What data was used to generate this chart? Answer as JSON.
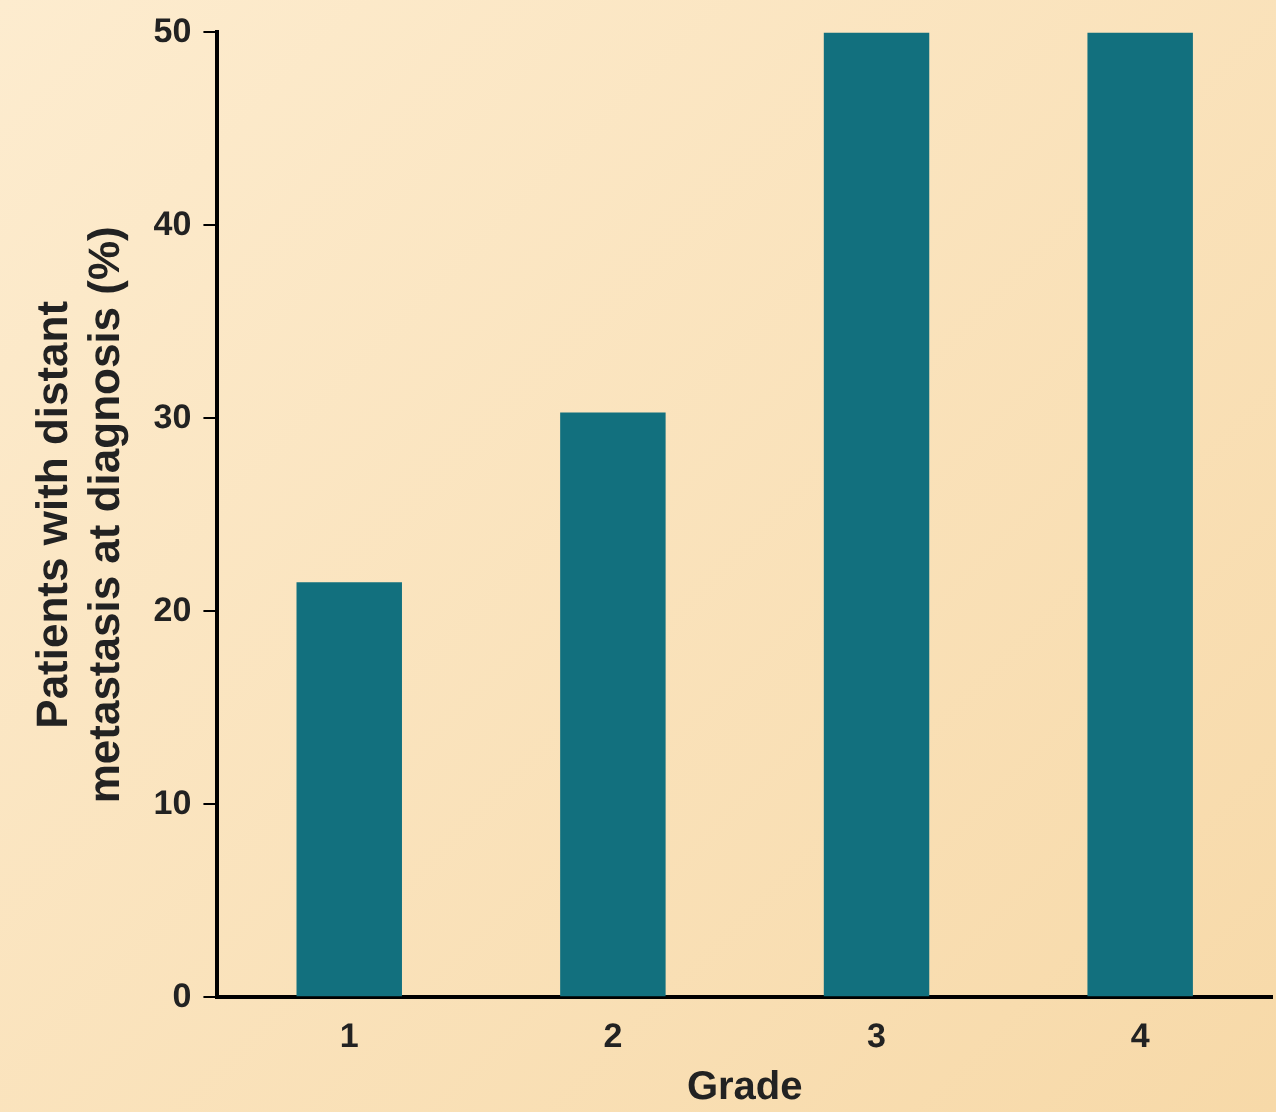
{
  "chart_data": {
    "type": "bar",
    "xlabel": "Grade",
    "ylabel": "Patients with distant\nmetastasis at diagnosis (%)",
    "categories": [
      "1",
      "2",
      "3",
      "4"
    ],
    "values": [
      21.5,
      30.3,
      50,
      50
    ],
    "color": "#12707e",
    "ylim": [
      0,
      50
    ],
    "yticks": [
      0,
      10,
      20,
      30,
      40,
      50
    ],
    "grid": false,
    "legend": false
  }
}
